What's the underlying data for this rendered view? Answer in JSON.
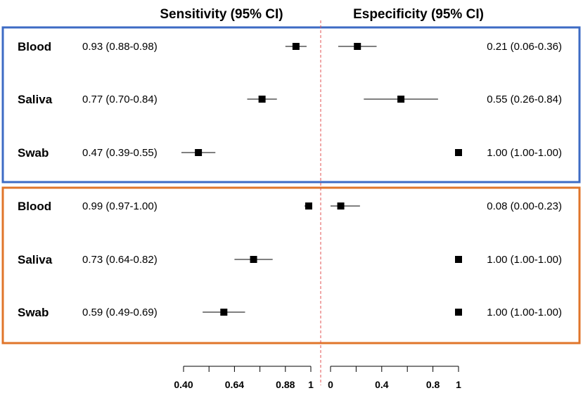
{
  "chart_data": {
    "type": "forest",
    "headers": {
      "sensitivity": "Sensitivity (95% CI)",
      "specificity": "Especificity (95% CI)"
    },
    "panels": [
      {
        "name": "panel-1",
        "border_color": "#3d6bc4",
        "rows": [
          {
            "label": "Blood",
            "sens": {
              "est": 0.93,
              "lo": 0.88,
              "hi": 0.98,
              "text": "0.93 (0.88-0.98)"
            },
            "spec": {
              "est": 0.21,
              "lo": 0.06,
              "hi": 0.36,
              "text": "0.21 (0.06-0.36)"
            }
          },
          {
            "label": "Saliva",
            "sens": {
              "est": 0.77,
              "lo": 0.7,
              "hi": 0.84,
              "text": "0.77 (0.70-0.84)"
            },
            "spec": {
              "est": 0.55,
              "lo": 0.26,
              "hi": 0.84,
              "text": "0.55 (0.26-0.84)"
            }
          },
          {
            "label": "Swab",
            "sens": {
              "est": 0.47,
              "lo": 0.39,
              "hi": 0.55,
              "text": "0.47 (0.39-0.55)"
            },
            "spec": {
              "est": 1.0,
              "lo": 1.0,
              "hi": 1.0,
              "text": "1.00 (1.00-1.00)"
            }
          }
        ]
      },
      {
        "name": "panel-2",
        "border_color": "#e0752a",
        "rows": [
          {
            "label": "Blood",
            "sens": {
              "est": 0.99,
              "lo": 0.97,
              "hi": 1.0,
              "text": "0.99 (0.97-1.00)"
            },
            "spec": {
              "est": 0.08,
              "lo": 0.0,
              "hi": 0.23,
              "text": "0.08 (0.00-0.23)"
            }
          },
          {
            "label": "Saliva",
            "sens": {
              "est": 0.73,
              "lo": 0.64,
              "hi": 0.82,
              "text": "0.73 (0.64-0.82)"
            },
            "spec": {
              "est": 1.0,
              "lo": 1.0,
              "hi": 1.0,
              "text": "1.00 (1.00-1.00)"
            }
          },
          {
            "label": "Swab",
            "sens": {
              "est": 0.59,
              "lo": 0.49,
              "hi": 0.69,
              "text": "0.59 (0.49-0.69)"
            },
            "spec": {
              "est": 1.0,
              "lo": 1.0,
              "hi": 1.0,
              "text": "1.00 (1.00-1.00)"
            }
          }
        ]
      }
    ],
    "sens_axis": {
      "min": 0.4,
      "max": 1.0,
      "tick_values": [
        0.4,
        0.52,
        0.64,
        0.76,
        0.88,
        1.0
      ],
      "tick_labels": [
        "0.40",
        "",
        "0.64",
        "",
        "0.88",
        "1"
      ]
    },
    "spec_axis": {
      "min": 0,
      "max": 1,
      "tick_values": [
        0,
        0.2,
        0.4,
        0.6,
        0.8,
        1.0
      ],
      "tick_labels": [
        "0",
        "",
        "0.4",
        "",
        "0.8",
        "1"
      ]
    },
    "reference_line": {
      "color": "#e05050",
      "style": "dashed"
    }
  }
}
